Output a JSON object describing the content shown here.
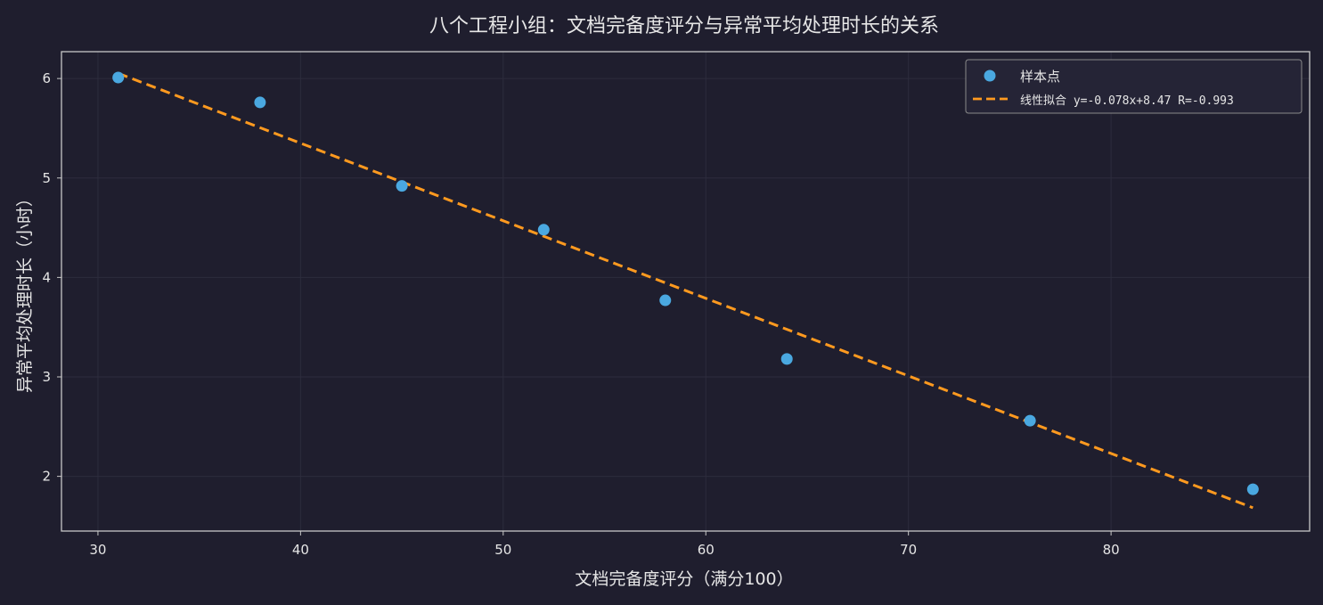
{
  "chart_data": {
    "type": "scatter",
    "title": "八个工程小组：文档完备度评分与异常平均处理时长的关系",
    "xlabel": "文档完备度评分（满分100）",
    "ylabel": "异常平均处理时长（小时）",
    "xlim": [
      28.2,
      89.8
    ],
    "ylim": [
      1.45,
      6.27
    ],
    "xticks": [
      30,
      40,
      50,
      60,
      70,
      80
    ],
    "yticks": [
      2,
      3,
      4,
      5,
      6
    ],
    "grid": true,
    "legend_position": "top-right",
    "series": [
      {
        "name": "样本点",
        "kind": "scatter",
        "color": "#4aa8e0",
        "points": [
          {
            "x": 31,
            "y": 6.01
          },
          {
            "x": 38,
            "y": 5.76
          },
          {
            "x": 45,
            "y": 4.92
          },
          {
            "x": 52,
            "y": 4.48
          },
          {
            "x": 58,
            "y": 3.77
          },
          {
            "x": 64,
            "y": 3.18
          },
          {
            "x": 76,
            "y": 2.56
          },
          {
            "x": 87,
            "y": 1.87
          }
        ]
      },
      {
        "name": "线性拟合 y=-0.078x+8.47  R=-0.993",
        "kind": "line",
        "style": "dashed",
        "color": "#ff9a1f",
        "slope": -0.078,
        "intercept": 8.47,
        "x_range": [
          31,
          87
        ]
      }
    ]
  },
  "colors": {
    "background": "#1f1e2e",
    "axes_frame": "#c8c8c8",
    "grid": "#2d2c3d",
    "text": "#e6e6e6"
  }
}
